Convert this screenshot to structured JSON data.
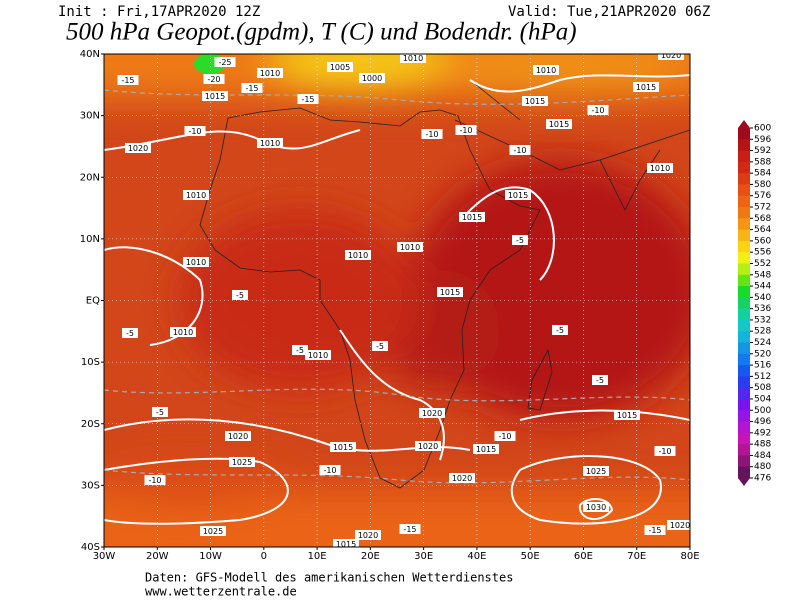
{
  "header": {
    "init": "Init : Fri,17APR2020 12Z",
    "valid": "Valid: Tue,21APR2020 06Z",
    "title": "500 hPa Geopot.(gpdm), T (C) und Bodendr. (hPa)"
  },
  "map": {
    "lon_ticks": [
      {
        "value": -30,
        "label": "30W"
      },
      {
        "value": -20,
        "label": "20W"
      },
      {
        "value": -10,
        "label": "10W"
      },
      0,
      {
        "value": 10,
        "label": "10E"
      },
      {
        "value": 20,
        "label": "20E"
      },
      {
        "value": 30,
        "label": "30E"
      },
      {
        "value": 40,
        "label": "40E"
      },
      {
        "value": 50,
        "label": "50E"
      },
      {
        "value": 60,
        "label": "60E"
      },
      {
        "value": 70,
        "label": "70E"
      },
      {
        "value": 80,
        "label": "80E"
      }
    ],
    "lat_ticks": [
      {
        "value": 40,
        "label": "40N"
      },
      {
        "value": 30,
        "label": "30N"
      },
      {
        "value": 20,
        "label": "20N"
      },
      {
        "value": 10,
        "label": "10N"
      },
      {
        "value": 0,
        "label": "EQ"
      },
      {
        "value": -10,
        "label": "10S"
      },
      {
        "value": -20,
        "label": "20S"
      },
      {
        "value": -30,
        "label": "30S"
      },
      {
        "value": -40,
        "label": "40S"
      }
    ],
    "lonlim": [
      -30,
      80
    ],
    "latlim": [
      -40,
      40
    ],
    "pressure_labels": [
      "1010",
      "1005",
      "1000",
      "1010",
      "1010",
      "1015",
      "1015",
      "1015",
      "1020",
      "1010",
      "1015",
      "1010",
      "1010",
      "1015",
      "1015",
      "1010",
      "1010",
      "1010",
      "1015",
      "1010",
      "1010",
      "1020",
      "1015",
      "1020",
      "1015",
      "1020",
      "1015",
      "1025",
      "1020",
      "1025",
      "1030",
      "1025",
      "1020",
      "1015",
      "1020",
      "1020"
    ],
    "temperature_labels": [
      "-25",
      "-20",
      "-15",
      "-15",
      "-10",
      "-10",
      "-10",
      "-10",
      "-10",
      "-15",
      "-5",
      "-5",
      "-10",
      "-10",
      "-10",
      "-10",
      "-15",
      "-15",
      "-5",
      "-5",
      "-5",
      "-5",
      "-5",
      "-5"
    ]
  },
  "colorbar": {
    "levels": [
      600,
      596,
      592,
      588,
      584,
      580,
      576,
      572,
      568,
      564,
      560,
      556,
      552,
      548,
      544,
      540,
      536,
      532,
      528,
      524,
      520,
      516,
      512,
      508,
      504,
      500,
      496,
      492,
      488,
      484,
      480,
      476
    ],
    "colors": [
      "#a00a1e",
      "#b41414",
      "#c81e14",
      "#d22814",
      "#dc3c14",
      "#e65014",
      "#ee6414",
      "#f07814",
      "#f49614",
      "#f8b414",
      "#fcd214",
      "#f0f014",
      "#b4f014",
      "#64e614",
      "#14dc28",
      "#14d264",
      "#14d2a0",
      "#14c8c8",
      "#14b4dc",
      "#1496e6",
      "#1478f0",
      "#145af0",
      "#283cf0",
      "#5028f0",
      "#7814f0",
      "#9614e6",
      "#b414d2",
      "#c814b4",
      "#b41496",
      "#8c1478",
      "#64145a"
    ]
  },
  "footer": {
    "line1": "Daten: GFS-Modell des amerikanischen Wetterdienstes",
    "line2": "www.wetterzentrale.de"
  }
}
